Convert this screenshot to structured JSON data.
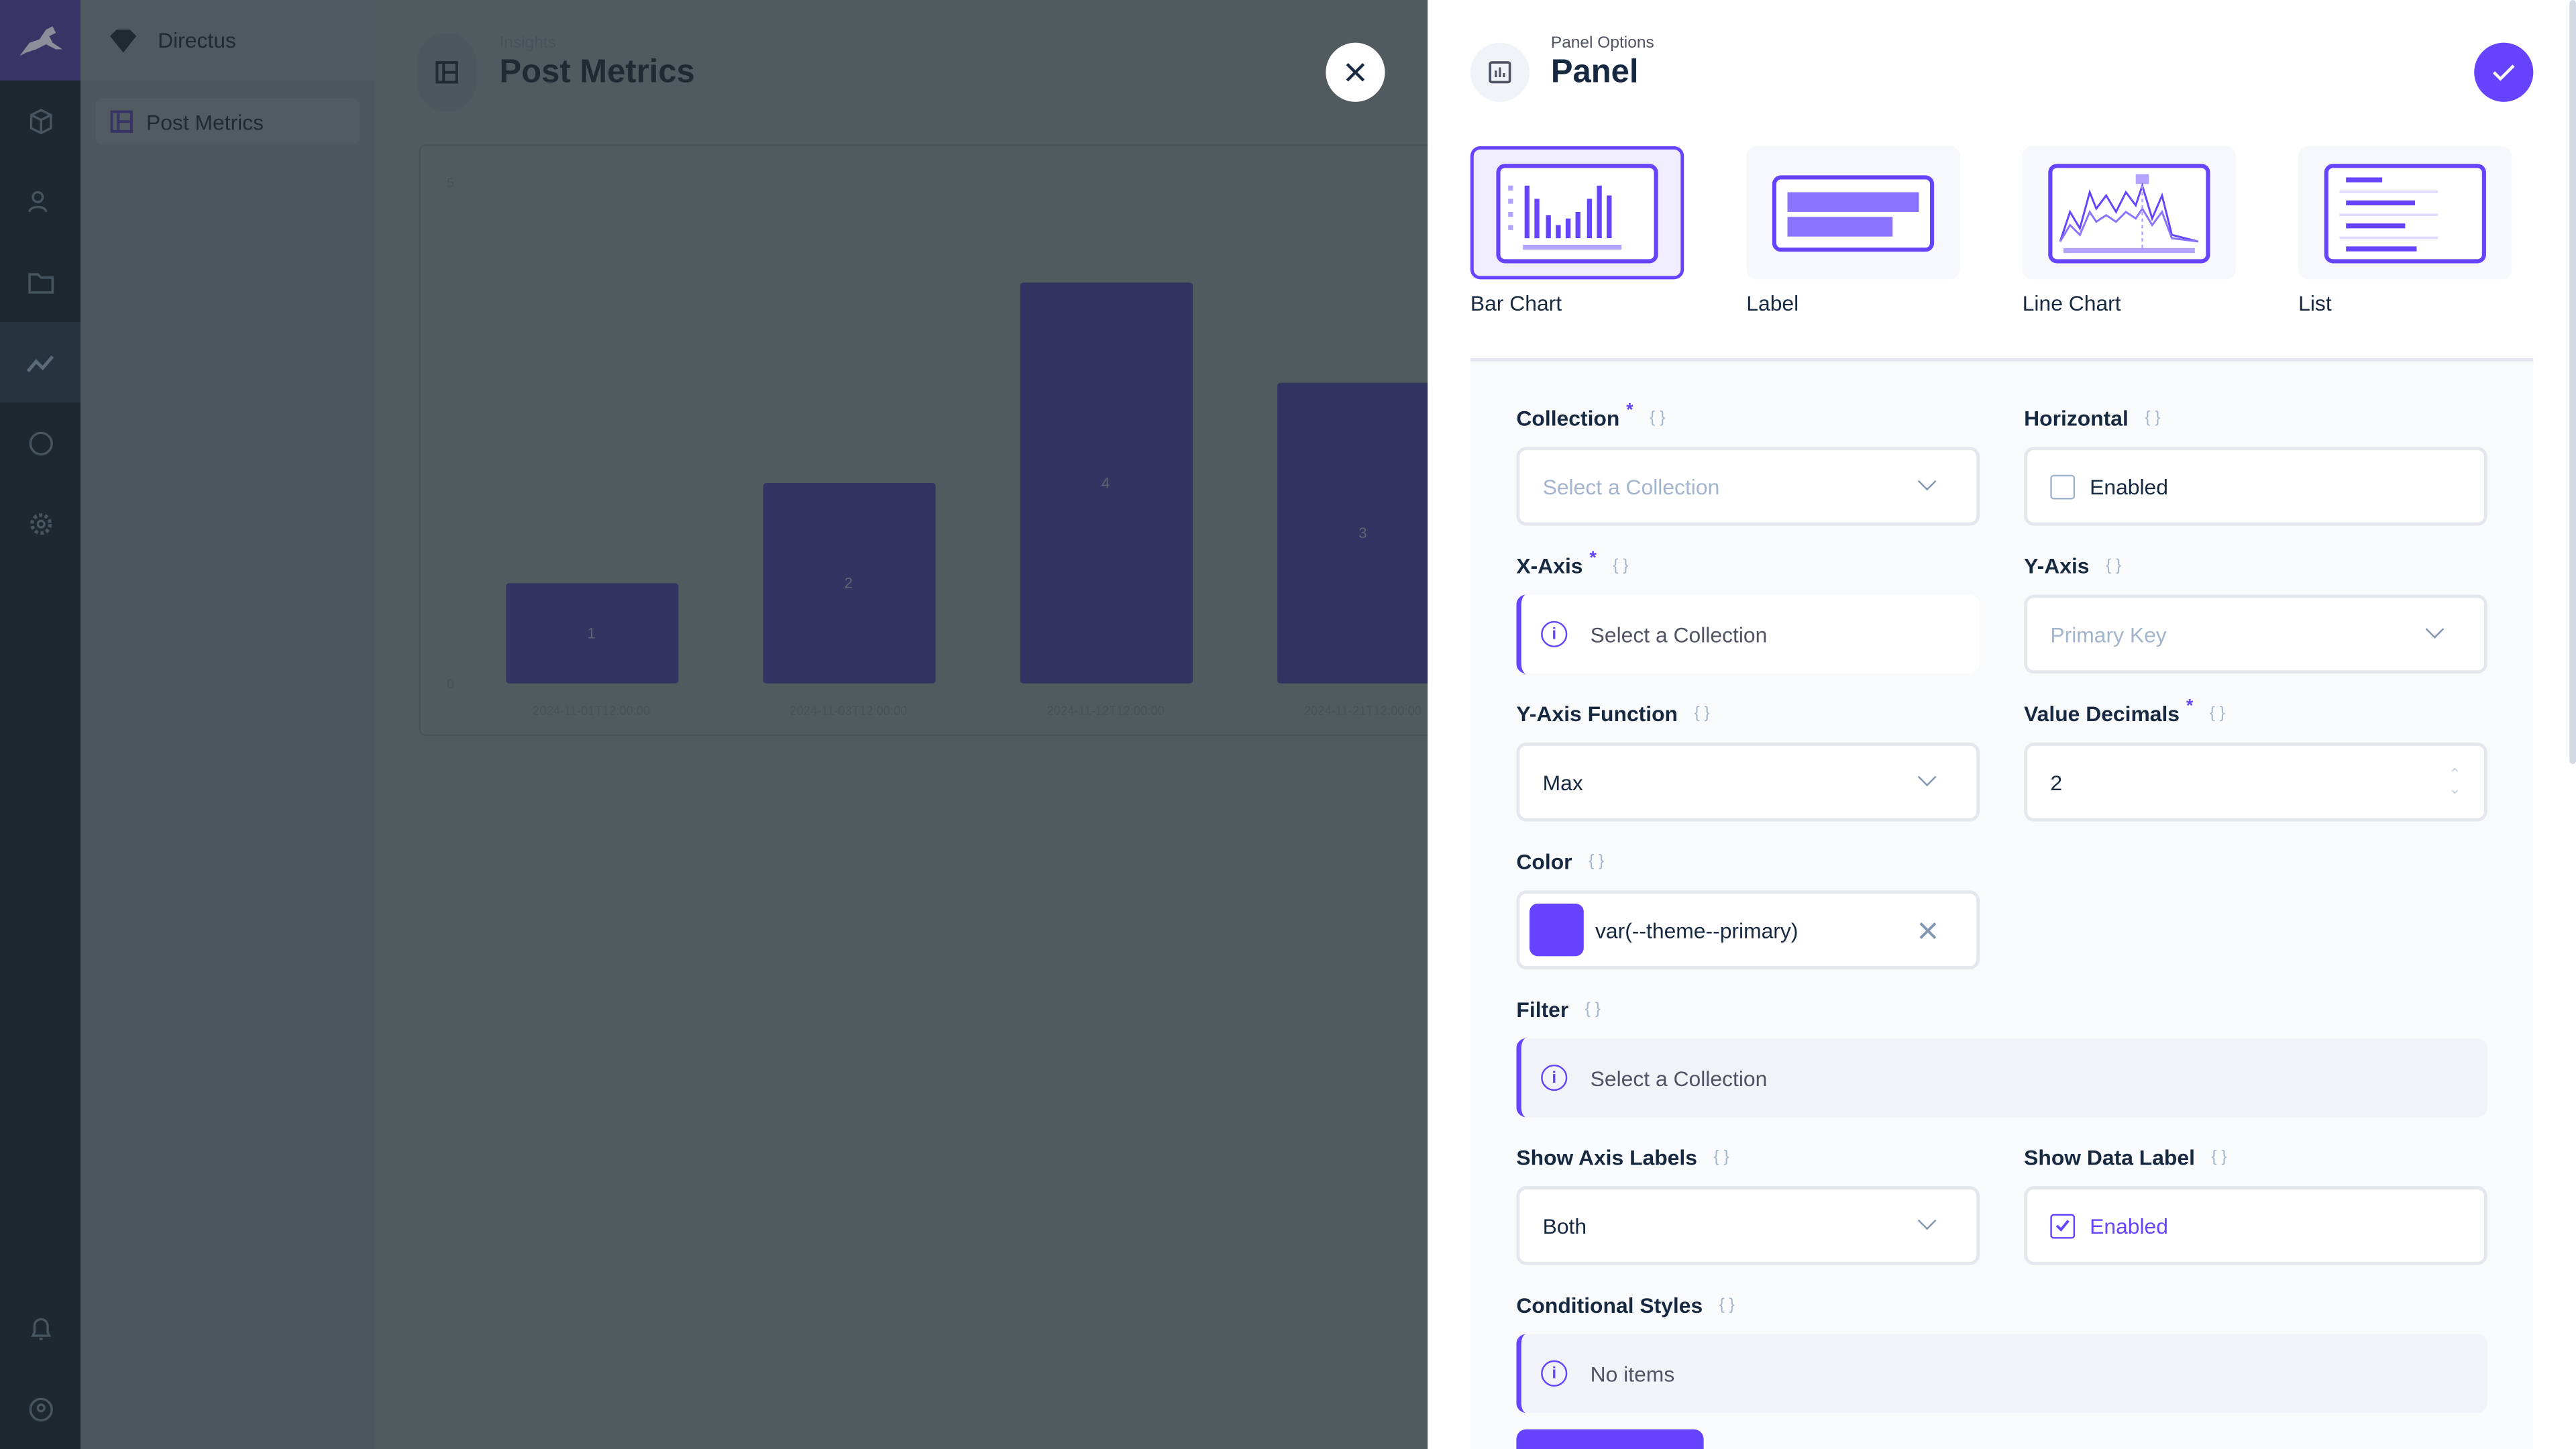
{
  "app": {
    "workspace": "Directus",
    "accent": "#6644ff"
  },
  "nav": {
    "items": [
      {
        "label": "Post Metrics"
      }
    ]
  },
  "header": {
    "breadcrumb": "Insights",
    "title": "Post Metrics"
  },
  "chart_data": {
    "type": "bar",
    "categories": [
      "2024-11-01T12:00:00",
      "2024-11-03T12:00:00",
      "2024-11-12T12:00:00",
      "2024-11-21T12:00:00"
    ],
    "values": [
      1,
      2,
      4,
      3
    ],
    "data_labels": [
      "1",
      "2",
      "4",
      "3"
    ],
    "y_ticks": [
      "0",
      "5"
    ],
    "ylim": [
      0,
      5
    ],
    "bar_color": "#6644ff"
  },
  "drawer": {
    "subtitle": "Panel Options",
    "title": "Panel",
    "types": [
      {
        "label": "Bar Chart",
        "selected": true
      },
      {
        "label": "Label"
      },
      {
        "label": "Line Chart"
      },
      {
        "label": "List"
      }
    ],
    "fields": {
      "collection": {
        "label": "Collection",
        "placeholder": "Select a Collection"
      },
      "horizontal": {
        "label": "Horizontal",
        "checkbox": "Enabled",
        "checked": false
      },
      "x_axis": {
        "label": "X-Axis",
        "notice": "Select a Collection"
      },
      "y_axis": {
        "label": "Y-Axis",
        "placeholder": "Primary Key"
      },
      "y_function": {
        "label": "Y-Axis Function",
        "value": "Max"
      },
      "decimals": {
        "label": "Value Decimals",
        "value": "2"
      },
      "color": {
        "label": "Color",
        "value": "var(--theme--primary)",
        "swatch": "#6644ff"
      },
      "filter": {
        "label": "Filter",
        "notice": "Select a Collection"
      },
      "axis_labels": {
        "label": "Show Axis Labels",
        "value": "Both"
      },
      "data_label": {
        "label": "Show Data Label",
        "checkbox": "Enabled",
        "checked": true
      },
      "conditional": {
        "label": "Conditional Styles",
        "notice": "No items"
      }
    }
  }
}
